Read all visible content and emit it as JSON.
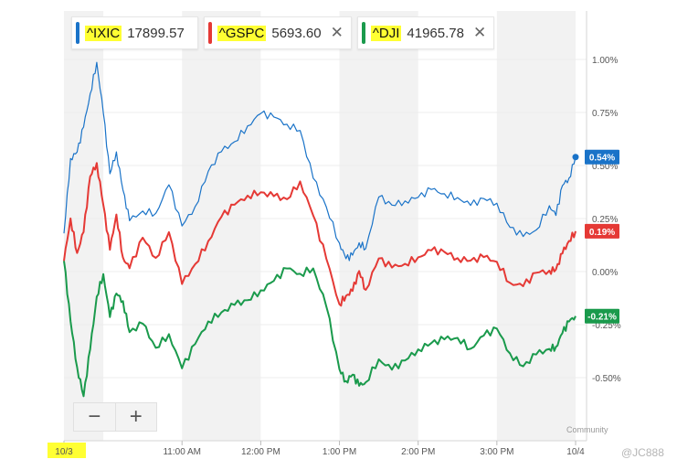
{
  "legend": [
    {
      "symbol": "^IXIC",
      "value": "17899.57",
      "color": "#1a73c8",
      "closable": false
    },
    {
      "symbol": "^GSPC",
      "value": "5693.60",
      "color": "#e53935",
      "closable": true
    },
    {
      "symbol": "^DJI",
      "value": "41965.78",
      "color": "#1a9a4c",
      "closable": true
    }
  ],
  "close_glyph": "✕",
  "zoom": {
    "minus": "−",
    "plus": "+"
  },
  "watermark": {
    "line1": "Community",
    "line2": "@JC888"
  },
  "chart_data": {
    "type": "line",
    "xlabel": "",
    "ylabel": "",
    "ylim": [
      -0.75,
      1.2
    ],
    "grid": true,
    "x_ticks": [
      "10/3",
      "11:00 AM",
      "12:00 PM",
      "1:00 PM",
      "2:00 PM",
      "3:00 PM",
      "10/4"
    ],
    "y_ticks": [
      "1.00%",
      "0.75%",
      "0.50%",
      "0.25%",
      "0.00%",
      "-0.25%",
      "-0.50%"
    ],
    "y_tick_values": [
      1.0,
      0.75,
      0.5,
      0.25,
      0.0,
      -0.25,
      -0.5
    ],
    "session": {
      "start": "09:30",
      "end": "16:00"
    },
    "shaded_hours": [
      [
        "09:30",
        "10:00"
      ],
      [
        "11:00",
        "12:00"
      ],
      [
        "13:00",
        "14:00"
      ],
      [
        "15:00",
        "16:00"
      ]
    ],
    "series": [
      {
        "name": "^IXIC",
        "color": "#1a73c8",
        "last_label": "0.54%",
        "end_marker": true,
        "times": [
          "09:30",
          "09:35",
          "09:40",
          "09:45",
          "09:50",
          "09:55",
          "10:00",
          "10:05",
          "10:10",
          "10:15",
          "10:20",
          "10:30",
          "10:40",
          "10:50",
          "11:00",
          "11:10",
          "11:20",
          "11:30",
          "11:40",
          "11:50",
          "12:00",
          "12:10",
          "12:20",
          "12:30",
          "12:40",
          "12:50",
          "13:00",
          "13:05",
          "13:10",
          "13:15",
          "13:20",
          "13:30",
          "13:40",
          "13:50",
          "14:00",
          "14:10",
          "14:20",
          "14:30",
          "14:40",
          "14:50",
          "15:00",
          "15:10",
          "15:20",
          "15:30",
          "15:40",
          "15:45",
          "15:50",
          "15:55",
          "16:00"
        ],
        "values": [
          0.18,
          0.52,
          0.55,
          0.68,
          0.85,
          1.0,
          0.75,
          0.45,
          0.55,
          0.38,
          0.25,
          0.3,
          0.28,
          0.4,
          0.2,
          0.3,
          0.48,
          0.58,
          0.62,
          0.68,
          0.73,
          0.72,
          0.7,
          0.68,
          0.45,
          0.3,
          0.12,
          0.05,
          0.08,
          0.15,
          0.12,
          0.35,
          0.3,
          0.32,
          0.35,
          0.4,
          0.38,
          0.35,
          0.3,
          0.33,
          0.32,
          0.22,
          0.18,
          0.2,
          0.3,
          0.25,
          0.4,
          0.45,
          0.54
        ]
      },
      {
        "name": "^GSPC",
        "color": "#e53935",
        "last_label": "0.19%",
        "end_marker": false,
        "times": [
          "09:30",
          "09:35",
          "09:40",
          "09:45",
          "09:50",
          "09:55",
          "10:00",
          "10:05",
          "10:10",
          "10:15",
          "10:20",
          "10:30",
          "10:40",
          "10:50",
          "11:00",
          "11:10",
          "11:20",
          "11:30",
          "11:40",
          "11:50",
          "12:00",
          "12:10",
          "12:20",
          "12:30",
          "12:40",
          "12:50",
          "13:00",
          "13:05",
          "13:10",
          "13:15",
          "13:20",
          "13:30",
          "13:40",
          "13:50",
          "14:00",
          "14:10",
          "14:20",
          "14:30",
          "14:40",
          "14:50",
          "15:00",
          "15:10",
          "15:20",
          "15:30",
          "15:40",
          "15:45",
          "15:50",
          "15:55",
          "16:00"
        ],
        "values": [
          0.05,
          0.25,
          0.1,
          0.2,
          0.45,
          0.5,
          0.3,
          0.1,
          0.28,
          0.08,
          0.02,
          0.15,
          0.05,
          0.18,
          -0.05,
          0.05,
          0.15,
          0.25,
          0.3,
          0.35,
          0.38,
          0.37,
          0.35,
          0.42,
          0.25,
          0.05,
          -0.15,
          -0.1,
          -0.08,
          0.0,
          -0.1,
          0.05,
          0.02,
          0.05,
          0.08,
          0.1,
          0.08,
          0.05,
          0.05,
          0.08,
          0.06,
          -0.05,
          -0.08,
          -0.02,
          0.0,
          0.02,
          0.1,
          0.15,
          0.19
        ]
      },
      {
        "name": "^DJI",
        "color": "#1a9a4c",
        "last_label": "-0.21%",
        "end_marker": false,
        "times": [
          "09:30",
          "09:35",
          "09:40",
          "09:45",
          "09:50",
          "09:55",
          "10:00",
          "10:05",
          "10:10",
          "10:15",
          "10:20",
          "10:30",
          "10:40",
          "10:50",
          "11:00",
          "11:10",
          "11:20",
          "11:30",
          "11:40",
          "11:50",
          "12:00",
          "12:10",
          "12:20",
          "12:30",
          "12:40",
          "12:50",
          "13:00",
          "13:05",
          "13:10",
          "13:15",
          "13:20",
          "13:30",
          "13:40",
          "13:50",
          "14:00",
          "14:10",
          "14:20",
          "14:30",
          "14:40",
          "14:50",
          "15:00",
          "15:10",
          "15:20",
          "15:30",
          "15:40",
          "15:45",
          "15:50",
          "15:55",
          "16:00"
        ],
        "values": [
          0.05,
          -0.22,
          -0.45,
          -0.6,
          -0.38,
          -0.12,
          0.0,
          -0.2,
          -0.1,
          -0.15,
          -0.3,
          -0.25,
          -0.35,
          -0.28,
          -0.45,
          -0.35,
          -0.25,
          -0.2,
          -0.15,
          -0.12,
          -0.08,
          -0.05,
          0.0,
          -0.02,
          0.02,
          -0.15,
          -0.45,
          -0.52,
          -0.5,
          -0.55,
          -0.52,
          -0.4,
          -0.45,
          -0.42,
          -0.38,
          -0.35,
          -0.32,
          -0.3,
          -0.35,
          -0.3,
          -0.28,
          -0.4,
          -0.45,
          -0.38,
          -0.35,
          -0.35,
          -0.3,
          -0.25,
          -0.21
        ]
      }
    ]
  }
}
